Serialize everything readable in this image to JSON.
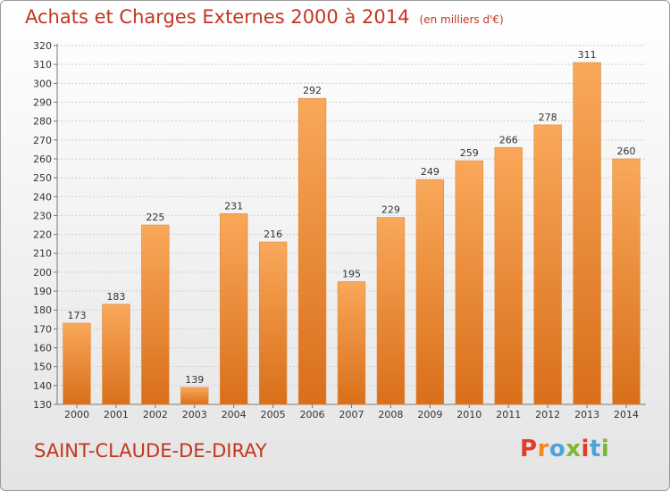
{
  "chart_data": {
    "type": "bar",
    "title": "Achats et Charges Externes 2000 à 2014",
    "subtitle": "(en milliers d'€)",
    "categories": [
      "2000",
      "2001",
      "2002",
      "2003",
      "2004",
      "2005",
      "2006",
      "2007",
      "2008",
      "2009",
      "2010",
      "2011",
      "2012",
      "2013",
      "2014"
    ],
    "values": [
      173,
      183,
      225,
      139,
      231,
      216,
      292,
      195,
      229,
      249,
      259,
      266,
      278,
      311,
      260
    ],
    "ylim": [
      130,
      320
    ],
    "yticks": [
      130,
      140,
      150,
      160,
      170,
      180,
      190,
      200,
      210,
      220,
      230,
      240,
      250,
      260,
      270,
      280,
      290,
      300,
      310,
      320
    ],
    "grid": true,
    "colors": {
      "bar_top": "#f9a85a",
      "bar_bottom": "#d96f1a",
      "text": "#c2361e"
    }
  },
  "location": {
    "name": "SAINT-CLAUDE-DE-DIRAY"
  },
  "logo": {
    "text": "Proxiti",
    "letter_colors": [
      "#e23a2c",
      "#f08a1e",
      "#4ba3d8",
      "#7cb733",
      "#e23a2c",
      "#4ba3d8",
      "#7cb733"
    ]
  }
}
